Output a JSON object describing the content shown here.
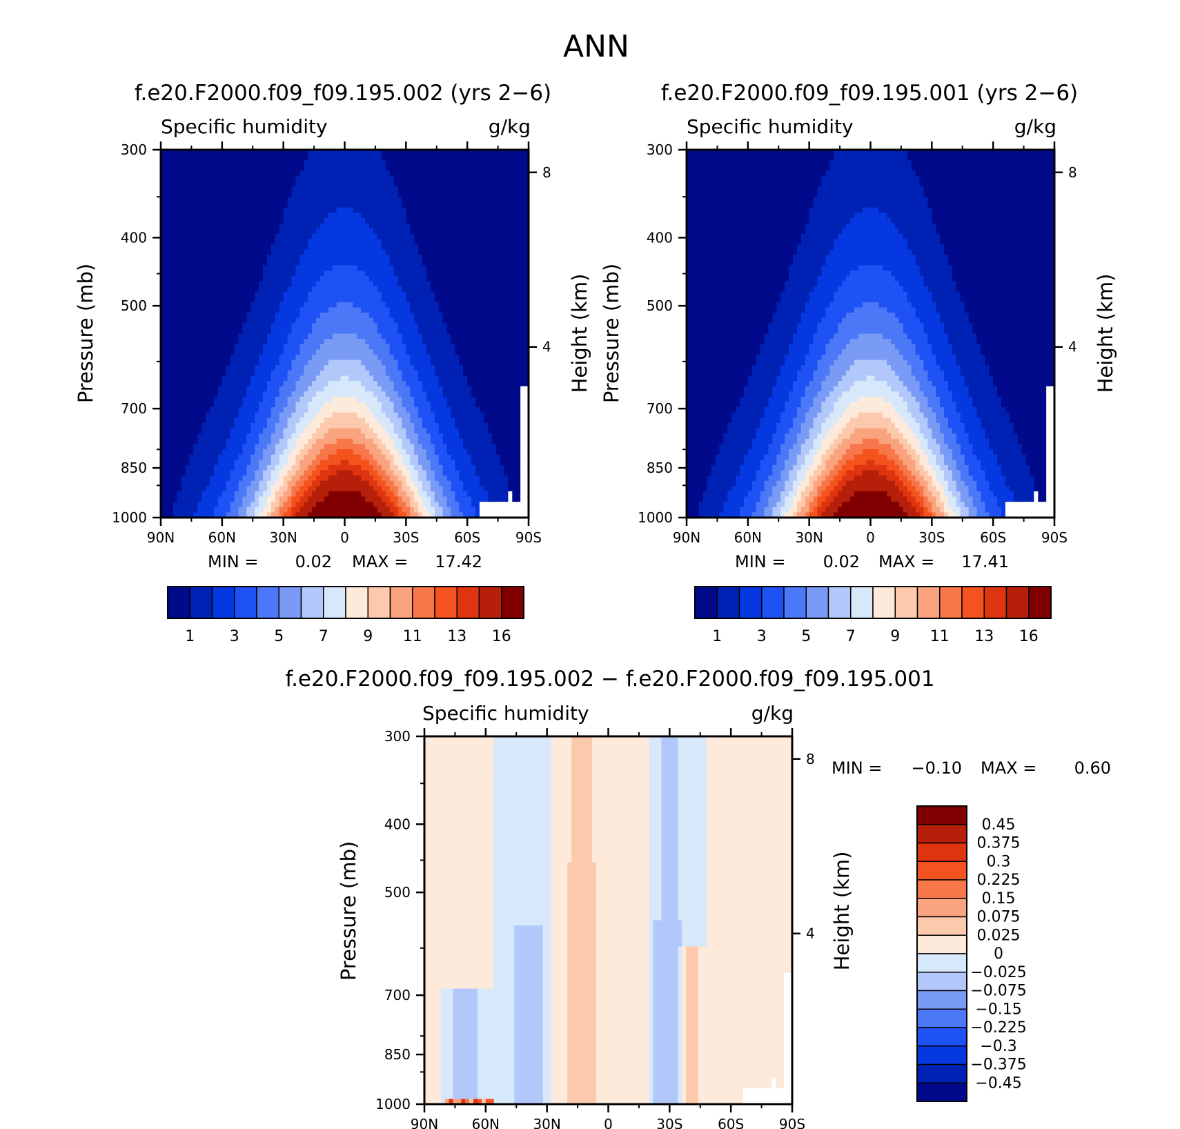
{
  "main_title": "ANN",
  "chart_data": [
    {
      "type": "heatmap",
      "title": "f.e20.F2000.f09_f09.195.002 (yrs 2−6)",
      "variable": "Specific humidity",
      "units": "g/kg",
      "ylabel": "Pressure (mb)",
      "ylabel_right": "Height (km)",
      "x_ticks": [
        "90N",
        "60N",
        "30N",
        "0",
        "30S",
        "60S",
        "90S"
      ],
      "y_ticks": [
        300,
        400,
        500,
        700,
        850,
        1000
      ],
      "y_ticks_right": [
        8,
        4
      ],
      "min_label": "MIN =",
      "min_value": "0.02",
      "max_label": "MAX =",
      "max_value": "17.42",
      "lat_range": [
        90,
        -90
      ],
      "pressure_range": [
        300,
        1000
      ],
      "colorbar_levels": [
        "1",
        "3",
        "5",
        "7",
        "9",
        "11",
        "13",
        "16"
      ],
      "field_peak": 17.42,
      "field_center_lat": 0
    },
    {
      "type": "heatmap",
      "title": "f.e20.F2000.f09_f09.195.001 (yrs 2−6)",
      "variable": "Specific humidity",
      "units": "g/kg",
      "ylabel": "Pressure (mb)",
      "ylabel_right": "Height (km)",
      "x_ticks": [
        "90N",
        "60N",
        "30N",
        "0",
        "30S",
        "60S",
        "90S"
      ],
      "y_ticks": [
        300,
        400,
        500,
        700,
        850,
        1000
      ],
      "y_ticks_right": [
        8,
        4
      ],
      "min_label": "MIN =",
      "min_value": "0.02",
      "max_label": "MAX =",
      "max_value": "17.41",
      "lat_range": [
        90,
        -90
      ],
      "pressure_range": [
        300,
        1000
      ],
      "colorbar_levels": [
        "1",
        "3",
        "5",
        "7",
        "9",
        "11",
        "13",
        "16"
      ],
      "field_peak": 17.41,
      "field_center_lat": 0
    },
    {
      "type": "heatmap",
      "title": "f.e20.F2000.f09_f09.195.002 − f.e20.F2000.f09_f09.195.001",
      "variable": "Specific humidity",
      "units": "g/kg",
      "ylabel": "Pressure (mb)",
      "ylabel_right": "Height (km)",
      "x_ticks": [
        "90N",
        "60N",
        "30N",
        "0",
        "30S",
        "60S",
        "90S"
      ],
      "y_ticks": [
        300,
        400,
        500,
        700,
        850,
        1000
      ],
      "y_ticks_right": [
        8,
        4
      ],
      "min_label": "MIN =",
      "min_value": "−0.10",
      "max_label": "MAX =",
      "max_value": "0.60",
      "lat_range": [
        90,
        -90
      ],
      "pressure_range": [
        300,
        1000
      ],
      "colorbar_levels": [
        "0.45",
        "0.375",
        "0.3",
        "0.225",
        "0.15",
        "0.075",
        "0.025",
        "0",
        "−0.025",
        "−0.075",
        "−0.15",
        "−0.225",
        "−0.3",
        "−0.375",
        "−0.45"
      ]
    }
  ],
  "colors": {
    "q_palette": [
      "#000a8a",
      "#0022b4",
      "#0538e0",
      "#1f52f5",
      "#4a78f7",
      "#7a9bf5",
      "#b2c8fa",
      "#d8e8fb",
      "#feeadb",
      "#fcc9ad",
      "#f9a47e",
      "#f8774a",
      "#f4521e",
      "#de3410",
      "#b6200a",
      "#800002"
    ],
    "diff_palette": [
      "#000a8a",
      "#0022b4",
      "#0538e0",
      "#1f52f5",
      "#4a78f7",
      "#7a9bf5",
      "#b2c8fa",
      "#d8e8fb",
      "#feeadb",
      "#fcc9ad",
      "#f9a47e",
      "#f8774a",
      "#f4521e",
      "#de3410",
      "#b6200a",
      "#800002"
    ]
  }
}
